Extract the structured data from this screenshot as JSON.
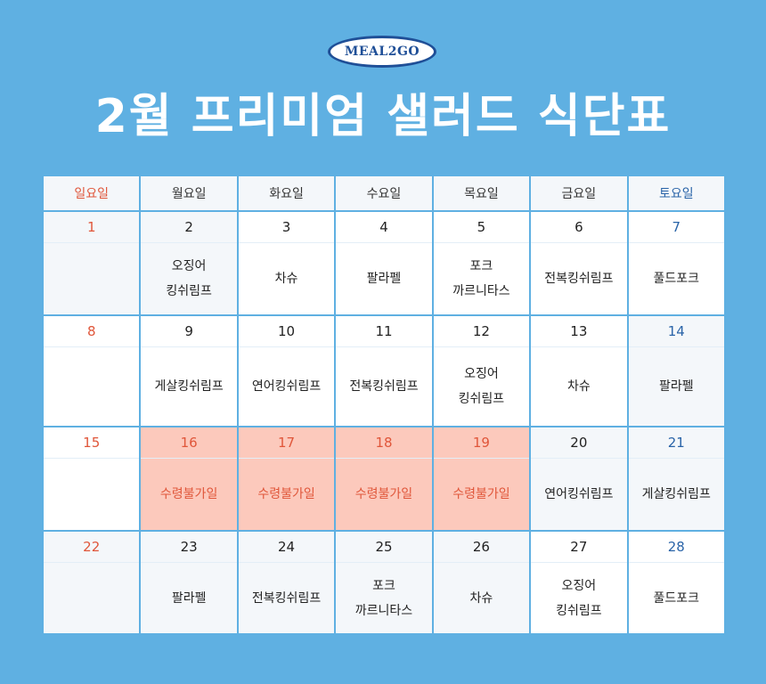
{
  "logo": "MEAL2GO",
  "title": "2월 프리미엄 샐러드 식단표",
  "colors": {
    "background": "#5fb0e2",
    "sunday": "#e0563a",
    "saturday": "#2a64a8",
    "closed": "#fcc9bc"
  },
  "weekdays": [
    "일요일",
    "월요일",
    "화요일",
    "수요일",
    "목요일",
    "금요일",
    "토요일"
  ],
  "days": [
    {
      "date": "1",
      "menu": ""
    },
    {
      "date": "2",
      "menu": "오징어\n킹쉬림프"
    },
    {
      "date": "3",
      "menu": "차슈"
    },
    {
      "date": "4",
      "menu": "팔라펠"
    },
    {
      "date": "5",
      "menu": "포크\n까르니타스"
    },
    {
      "date": "6",
      "menu": "전복킹쉬림프"
    },
    {
      "date": "7",
      "menu": "풀드포크"
    },
    {
      "date": "8",
      "menu": ""
    },
    {
      "date": "9",
      "menu": "게살킹쉬림프"
    },
    {
      "date": "10",
      "menu": "연어킹쉬림프"
    },
    {
      "date": "11",
      "menu": "전복킹쉬림프"
    },
    {
      "date": "12",
      "menu": "오징어\n킹쉬림프"
    },
    {
      "date": "13",
      "menu": "차슈"
    },
    {
      "date": "14",
      "menu": "팔라펠"
    },
    {
      "date": "15",
      "menu": ""
    },
    {
      "date": "16",
      "menu": "수령불가일",
      "closed": true
    },
    {
      "date": "17",
      "menu": "수령불가일",
      "closed": true
    },
    {
      "date": "18",
      "menu": "수령불가일",
      "closed": true
    },
    {
      "date": "19",
      "menu": "수령불가일",
      "closed": true
    },
    {
      "date": "20",
      "menu": "연어킹쉬림프"
    },
    {
      "date": "21",
      "menu": "게살킹쉬림프"
    },
    {
      "date": "22",
      "menu": ""
    },
    {
      "date": "23",
      "menu": "팔라펠"
    },
    {
      "date": "24",
      "menu": "전복킹쉬림프"
    },
    {
      "date": "25",
      "menu": "포크\n까르니타스"
    },
    {
      "date": "26",
      "menu": "차슈"
    },
    {
      "date": "27",
      "menu": "오징어\n킹쉬림프"
    },
    {
      "date": "28",
      "menu": "풀드포크"
    }
  ]
}
